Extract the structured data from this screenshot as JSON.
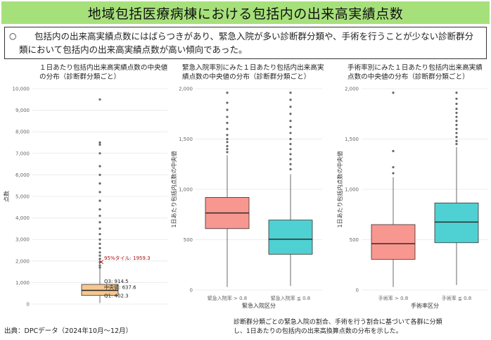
{
  "title": "地域包括医療病棟における包括内の出来高実績点数",
  "summary": {
    "bullet": "○",
    "text": "包括内の出来高実績点数にはばらつきがあり、緊急入院が多い診断群分類や、手術を行うことが少ない診断群分類において包括内の出来高実績点数が高い傾向であった。"
  },
  "source": "出典：DPCデータ（2024年10月～12月）",
  "note": "診断群分類ごとの緊急入院の割合、手術を行う割合に基づいて各群に分類し、1日あたりの包括内の出来高換算点数の分布を示した。",
  "chart_data": [
    {
      "type": "box",
      "title": "１日あたり包括内出来高実績点数の中央値の分布（診断群分類ごと）",
      "xlabel": "",
      "ylabel": "点数",
      "ylim": [
        0,
        10000
      ],
      "yticks": [
        "0",
        "1,000",
        "2,000",
        "3,000",
        "4,000",
        "5,000",
        "6,000",
        "7,000",
        "8,000",
        "9,000",
        "10,000"
      ],
      "color": "#f7c78f",
      "boxes": [
        {
          "name": "",
          "q1": 402.3,
          "median": 637.6,
          "q3": 914.5,
          "whisker_low": 50,
          "whisker_high": 1650,
          "outliers": [
            1700,
            1800,
            1950,
            2100,
            2250,
            2400,
            2600,
            2800,
            3000,
            3250,
            3500,
            3800,
            4100,
            4400,
            4800,
            5200,
            5600,
            6000,
            6400,
            7000,
            7400,
            7500,
            9500
          ]
        }
      ],
      "annotations": [
        {
          "label": "95%タイル: 1959.3",
          "value": 1959.3,
          "color": "#b01010"
        },
        {
          "label": "Q3: 914.5",
          "value": 914.5
        },
        {
          "label": "中央値: 637.6",
          "value": 637.6
        },
        {
          "label": "Q1: 402.3",
          "value": 402.3
        }
      ]
    },
    {
      "type": "box",
      "title": "緊急入院率別にみた１日あたり包括内出来高実績点数の中央値の分布（診断群分類ごと）",
      "xlabel": "緊急入院区分",
      "ylabel": "1日あたり包括内点数の中央値",
      "ylim": [
        0,
        2000
      ],
      "yticks": [
        "0",
        "500",
        "1,000",
        "1,500",
        "2,000"
      ],
      "boxes": [
        {
          "name": "緊急入院率 > 0.8",
          "color": "#f8978f",
          "q1": 610,
          "median": 765,
          "q3": 920,
          "whisker_low": 30,
          "whisker_high": 1340,
          "outliers": [
            1370,
            1400,
            1430,
            1470,
            1500,
            1540,
            1600,
            1660,
            1720,
            1790,
            1860,
            1960
          ]
        },
        {
          "name": "緊急入院率 ≦ 0.8",
          "color": "#4fd0d2",
          "q1": 355,
          "median": 505,
          "q3": 695,
          "whisker_low": 40,
          "whisker_high": 1150,
          "outliers": [
            1200,
            1250,
            1300,
            1350,
            1400,
            1450,
            1500,
            1560,
            1620,
            1680,
            1750,
            1820,
            1890,
            1960
          ]
        }
      ]
    },
    {
      "type": "box",
      "title": "手術率別にみた１日あたり包括内出来高実績点数の中央値の分布（診断群分類ごと）",
      "xlabel": "手術率区分",
      "ylabel": "1日あたり包括内点数の中央値",
      "ylim": [
        0,
        2000
      ],
      "yticks": [
        "0",
        "500",
        "1,000",
        "1,500",
        "2,000"
      ],
      "boxes": [
        {
          "name": "手術率 > 0.8",
          "color": "#f8978f",
          "q1": 305,
          "median": 460,
          "q3": 650,
          "whisker_low": 30,
          "whisker_high": 1120,
          "outliers": [
            1160,
            1220,
            1380,
            1960
          ]
        },
        {
          "name": "手術率 ≦ 0.8",
          "color": "#4fd0d2",
          "q1": 470,
          "median": 675,
          "q3": 865,
          "whisker_low": 50,
          "whisker_high": 1420,
          "outliers": [
            1450,
            1480,
            1520,
            1560,
            1600,
            1640,
            1680,
            1720,
            1760,
            1800,
            1850,
            1900,
            1960
          ]
        }
      ]
    }
  ]
}
